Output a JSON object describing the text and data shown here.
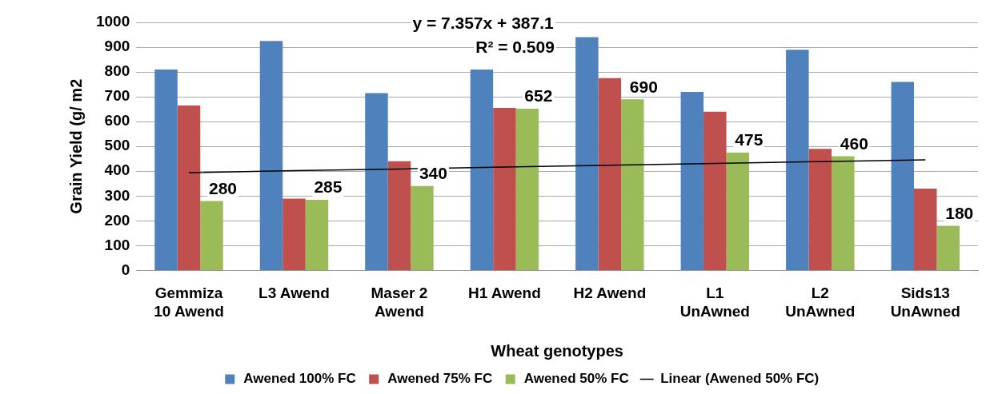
{
  "chart_data": {
    "type": "bar",
    "xlabel": "Wheat genotypes",
    "ylabel": "Grain Yield (g/ m2",
    "categories": [
      "Gemmiza 10 Awend",
      "L3 Awend",
      "Maser 2 Awend",
      "H1 Awend",
      "H2 Awend",
      "L1 UnAwned",
      "L2 UnAwned",
      "Sids13 UnAwned"
    ],
    "series": [
      {
        "name": "Awened 100% FC",
        "color": "#4f81bd",
        "values": [
          810,
          925,
          715,
          810,
          940,
          720,
          890,
          760
        ]
      },
      {
        "name": "Awened 75% FC",
        "color": "#c0504d",
        "values": [
          665,
          290,
          440,
          655,
          775,
          640,
          490,
          330
        ]
      },
      {
        "name": "Awened 50% FC",
        "color": "#9bbb59",
        "values": [
          280,
          285,
          340,
          652,
          690,
          475,
          460,
          180
        ],
        "value_labels": [
          "280",
          "285",
          "340",
          "652",
          "690",
          "475",
          "460",
          "180"
        ]
      },
      {
        "name": "Linear (Awened 50% FC)",
        "type": "line",
        "color": "#000000",
        "values": [
          394,
          402,
          409,
          417,
          424,
          431,
          439,
          446
        ]
      }
    ],
    "annotations": [
      "y = 7.357x + 387.1",
      "R² = 0.509"
    ],
    "ylim": [
      0,
      1000
    ],
    "yticks": [
      0,
      100,
      200,
      300,
      400,
      500,
      600,
      700,
      800,
      900,
      1000
    ],
    "grid": "y",
    "legend": "bottom",
    "marker": "none"
  }
}
